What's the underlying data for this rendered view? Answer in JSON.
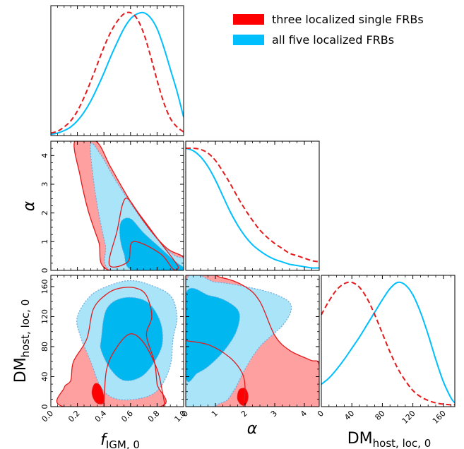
{
  "chart_data": {
    "type": "corner",
    "parameters": [
      {
        "id": "f",
        "label_main": "f",
        "label_sub": "IGM, 0",
        "range": [
          0.0,
          1.0
        ],
        "ticks": [
          "0.0",
          "0.2",
          "0.4",
          "0.6",
          "0.8",
          "1.0"
        ],
        "tick_values": [
          0.0,
          0.2,
          0.4,
          0.6,
          0.8,
          1.0
        ]
      },
      {
        "id": "alpha",
        "label_main": "α",
        "label_sub": "",
        "range": [
          0,
          4.5
        ],
        "ticks": [
          "0",
          "1",
          "2",
          "3",
          "4"
        ],
        "tick_values": [
          0,
          1,
          2,
          3,
          4
        ]
      },
      {
        "id": "dm",
        "label_main": "DM",
        "label_sub": "host, loc, 0",
        "range": [
          0,
          175
        ],
        "ticks": [
          "0",
          "40",
          "80",
          "120",
          "160"
        ],
        "tick_values": [
          0,
          40,
          80,
          120,
          160
        ]
      }
    ],
    "legend": [
      {
        "label": "three localized single FRBs",
        "color": "#ff0000"
      },
      {
        "label": "all five localized FRBs",
        "color": "#00bfff"
      }
    ],
    "legend_position": "top-right",
    "colors": {
      "red_line": "#e41a1c",
      "red_fill": "#ffa0a0",
      "red_core": "#ff0000",
      "blue_line": "#00bfff",
      "blue_light": "#a9e4f9",
      "blue_dark": "#00b7f0",
      "blue_dotted": "#6fa8dc"
    },
    "series": [
      {
        "name": "three localized single FRBs",
        "style": "dashed",
        "marginal_f": [
          [
            0.0,
            0.02
          ],
          [
            0.05,
            0.035
          ],
          [
            0.1,
            0.07
          ],
          [
            0.15,
            0.12
          ],
          [
            0.2,
            0.2
          ],
          [
            0.25,
            0.31
          ],
          [
            0.3,
            0.44
          ],
          [
            0.35,
            0.58
          ],
          [
            0.4,
            0.72
          ],
          [
            0.45,
            0.84
          ],
          [
            0.5,
            0.93
          ],
          [
            0.55,
            0.99
          ],
          [
            0.6,
            1.0
          ],
          [
            0.65,
            0.95
          ],
          [
            0.7,
            0.83
          ],
          [
            0.75,
            0.65
          ],
          [
            0.8,
            0.45
          ],
          [
            0.85,
            0.27
          ],
          [
            0.9,
            0.14
          ],
          [
            0.95,
            0.07
          ],
          [
            1.0,
            0.03
          ]
        ],
        "marginal_alpha": [
          [
            0.0,
            1.0
          ],
          [
            0.25,
            1.0
          ],
          [
            0.5,
            0.99
          ],
          [
            0.75,
            0.96
          ],
          [
            1.0,
            0.9
          ],
          [
            1.25,
            0.81
          ],
          [
            1.5,
            0.71
          ],
          [
            1.75,
            0.6
          ],
          [
            2.0,
            0.5
          ],
          [
            2.25,
            0.41
          ],
          [
            2.5,
            0.33
          ],
          [
            2.75,
            0.27
          ],
          [
            3.0,
            0.22
          ],
          [
            3.25,
            0.18
          ],
          [
            3.5,
            0.14
          ],
          [
            3.75,
            0.12
          ],
          [
            4.0,
            0.1
          ],
          [
            4.25,
            0.08
          ],
          [
            4.5,
            0.07
          ]
        ],
        "marginal_dm": [
          [
            0,
            0.74
          ],
          [
            10,
            0.85
          ],
          [
            20,
            0.94
          ],
          [
            30,
            0.99
          ],
          [
            40,
            1.0
          ],
          [
            50,
            0.96
          ],
          [
            60,
            0.87
          ],
          [
            70,
            0.74
          ],
          [
            80,
            0.59
          ],
          [
            90,
            0.44
          ],
          [
            100,
            0.31
          ],
          [
            110,
            0.21
          ],
          [
            120,
            0.13
          ],
          [
            130,
            0.08
          ],
          [
            140,
            0.05
          ],
          [
            150,
            0.03
          ],
          [
            160,
            0.02
          ],
          [
            170,
            0.015
          ],
          [
            175,
            0.015
          ]
        ]
      },
      {
        "name": "all five localized FRBs",
        "style": "solid",
        "marginal_f": [
          [
            0.0,
            0.01
          ],
          [
            0.05,
            0.02
          ],
          [
            0.1,
            0.04
          ],
          [
            0.15,
            0.07
          ],
          [
            0.2,
            0.12
          ],
          [
            0.25,
            0.19
          ],
          [
            0.3,
            0.28
          ],
          [
            0.35,
            0.39
          ],
          [
            0.4,
            0.51
          ],
          [
            0.45,
            0.64
          ],
          [
            0.5,
            0.76
          ],
          [
            0.55,
            0.87
          ],
          [
            0.6,
            0.95
          ],
          [
            0.65,
            0.99
          ],
          [
            0.7,
            1.0
          ],
          [
            0.75,
            0.96
          ],
          [
            0.8,
            0.87
          ],
          [
            0.85,
            0.72
          ],
          [
            0.9,
            0.54
          ],
          [
            0.95,
            0.36
          ],
          [
            1.0,
            0.15
          ]
        ],
        "marginal_alpha": [
          [
            0.0,
            1.0
          ],
          [
            0.25,
            0.98
          ],
          [
            0.5,
            0.93
          ],
          [
            0.75,
            0.85
          ],
          [
            1.0,
            0.74
          ],
          [
            1.25,
            0.61
          ],
          [
            1.5,
            0.48
          ],
          [
            1.75,
            0.37
          ],
          [
            2.0,
            0.28
          ],
          [
            2.25,
            0.21
          ],
          [
            2.5,
            0.16
          ],
          [
            2.75,
            0.12
          ],
          [
            3.0,
            0.09
          ],
          [
            3.25,
            0.07
          ],
          [
            3.5,
            0.05
          ],
          [
            3.75,
            0.04
          ],
          [
            4.0,
            0.03
          ],
          [
            4.25,
            0.02
          ],
          [
            4.5,
            0.02
          ]
        ],
        "marginal_dm": [
          [
            0,
            0.18
          ],
          [
            10,
            0.23
          ],
          [
            20,
            0.3
          ],
          [
            30,
            0.38
          ],
          [
            40,
            0.47
          ],
          [
            50,
            0.56
          ],
          [
            60,
            0.66
          ],
          [
            70,
            0.76
          ],
          [
            80,
            0.86
          ],
          [
            90,
            0.95
          ],
          [
            100,
            1.0
          ],
          [
            110,
            0.98
          ],
          [
            120,
            0.9
          ],
          [
            130,
            0.76
          ],
          [
            140,
            0.58
          ],
          [
            150,
            0.38
          ],
          [
            160,
            0.2
          ],
          [
            170,
            0.07
          ],
          [
            175,
            0.03
          ]
        ]
      }
    ],
    "joint_f_alpha": {
      "red_outer": [
        [
          0.18,
          4.5
        ],
        [
          0.34,
          4.5
        ],
        [
          0.45,
          3.6
        ],
        [
          0.6,
          2.4
        ],
        [
          0.75,
          1.4
        ],
        [
          0.88,
          0.75
        ],
        [
          1.0,
          0.45
        ],
        [
          1.0,
          0.0
        ],
        [
          0.44,
          0.0
        ],
        [
          0.36,
          1.0
        ],
        [
          0.28,
          2.1
        ],
        [
          0.22,
          3.3
        ]
      ],
      "red_inner": [
        [
          0.44,
          0.2
        ],
        [
          0.5,
          1.4
        ],
        [
          0.54,
          2.3
        ],
        [
          0.58,
          2.5
        ],
        [
          0.66,
          2.0
        ],
        [
          0.82,
          1.0
        ],
        [
          0.92,
          0.4
        ],
        [
          0.96,
          0.1
        ],
        [
          0.92,
          0.05
        ],
        [
          0.82,
          0.6
        ],
        [
          0.62,
          1.0
        ],
        [
          0.58,
          0.3
        ]
      ],
      "blue_light": [
        [
          0.3,
          4.4
        ],
        [
          0.38,
          4.0
        ],
        [
          0.48,
          3.2
        ],
        [
          0.62,
          2.2
        ],
        [
          0.78,
          1.2
        ],
        [
          0.92,
          0.55
        ],
        [
          1.0,
          0.4
        ],
        [
          1.0,
          0.0
        ],
        [
          0.46,
          0.0
        ],
        [
          0.41,
          0.9
        ],
        [
          0.36,
          2.0
        ],
        [
          0.32,
          3.2
        ]
      ],
      "blue_dark": [
        [
          0.53,
          1.7
        ],
        [
          0.6,
          1.8
        ],
        [
          0.7,
          1.3
        ],
        [
          0.82,
          0.8
        ],
        [
          0.94,
          0.3
        ],
        [
          1.0,
          0.1
        ],
        [
          1.0,
          0.0
        ],
        [
          0.62,
          0.0
        ],
        [
          0.55,
          0.6
        ],
        [
          0.52,
          1.2
        ]
      ]
    },
    "joint_f_dm": {
      "red_outer": [
        [
          0.1,
          0
        ],
        [
          0.1,
          25
        ],
        [
          0.15,
          35
        ],
        [
          0.17,
          60
        ],
        [
          0.27,
          90
        ],
        [
          0.32,
          130
        ],
        [
          0.42,
          150
        ],
        [
          0.52,
          158
        ],
        [
          0.64,
          158
        ],
        [
          0.72,
          148
        ],
        [
          0.76,
          120
        ],
        [
          0.72,
          95
        ],
        [
          0.78,
          60
        ],
        [
          0.8,
          30
        ],
        [
          0.82,
          0
        ]
      ],
      "red_inner": [
        [
          0.4,
          0
        ],
        [
          0.42,
          50
        ],
        [
          0.5,
          80
        ],
        [
          0.6,
          97
        ],
        [
          0.7,
          85
        ],
        [
          0.8,
          50
        ],
        [
          0.84,
          20
        ],
        [
          0.86,
          0
        ]
      ],
      "red_core": [
        [
          0.31,
          18
        ],
        [
          0.33,
          30
        ],
        [
          0.37,
          28
        ],
        [
          0.4,
          12
        ],
        [
          0.39,
          4
        ],
        [
          0.34,
          6
        ]
      ],
      "blue_light": [
        [
          0.2,
          120
        ],
        [
          0.3,
          148
        ],
        [
          0.45,
          162
        ],
        [
          0.6,
          168
        ],
        [
          0.75,
          162
        ],
        [
          0.9,
          148
        ],
        [
          0.95,
          120
        ],
        [
          0.92,
          90
        ],
        [
          0.9,
          55
        ],
        [
          0.82,
          25
        ],
        [
          0.7,
          12
        ],
        [
          0.5,
          10
        ],
        [
          0.38,
          25
        ],
        [
          0.3,
          60
        ],
        [
          0.22,
          95
        ]
      ],
      "blue_dark": [
        [
          0.38,
          90
        ],
        [
          0.42,
          130
        ],
        [
          0.55,
          145
        ],
        [
          0.72,
          140
        ],
        [
          0.82,
          115
        ],
        [
          0.84,
          85
        ],
        [
          0.78,
          60
        ],
        [
          0.68,
          40
        ],
        [
          0.55,
          35
        ],
        [
          0.45,
          50
        ],
        [
          0.38,
          75
        ]
      ]
    },
    "joint_alpha_dm": {
      "red_outer": [
        [
          0,
          175
        ],
        [
          1.2,
          172
        ],
        [
          2.0,
          160
        ],
        [
          2.5,
          140
        ],
        [
          3.0,
          95
        ],
        [
          3.5,
          75
        ],
        [
          4.2,
          62
        ],
        [
          4.5,
          55
        ],
        [
          4.5,
          0
        ],
        [
          0,
          0
        ]
      ],
      "red_inner": [
        [
          0,
          88
        ],
        [
          0.8,
          82
        ],
        [
          1.5,
          65
        ],
        [
          1.9,
          45
        ],
        [
          2.0,
          25
        ],
        [
          1.95,
          0
        ]
      ],
      "red_core": [
        [
          1.75,
          10
        ],
        [
          1.8,
          22
        ],
        [
          2.0,
          24
        ],
        [
          2.1,
          15
        ],
        [
          2.05,
          5
        ],
        [
          1.9,
          2
        ]
      ],
      "blue_light": [
        [
          0,
          165
        ],
        [
          1.0,
          166
        ],
        [
          2.0,
          160
        ],
        [
          3.0,
          150
        ],
        [
          3.55,
          135
        ],
        [
          3.3,
          110
        ],
        [
          2.5,
          80
        ],
        [
          2.0,
          50
        ],
        [
          1.6,
          20
        ],
        [
          1.2,
          5
        ],
        [
          0,
          0
        ]
      ],
      "blue_dark": [
        [
          0,
          150
        ],
        [
          0.8,
          148
        ],
        [
          1.4,
          140
        ],
        [
          1.8,
          125
        ],
        [
          1.7,
          100
        ],
        [
          1.3,
          75
        ],
        [
          0.8,
          55
        ],
        [
          0.4,
          45
        ],
        [
          0,
          40
        ]
      ]
    }
  }
}
